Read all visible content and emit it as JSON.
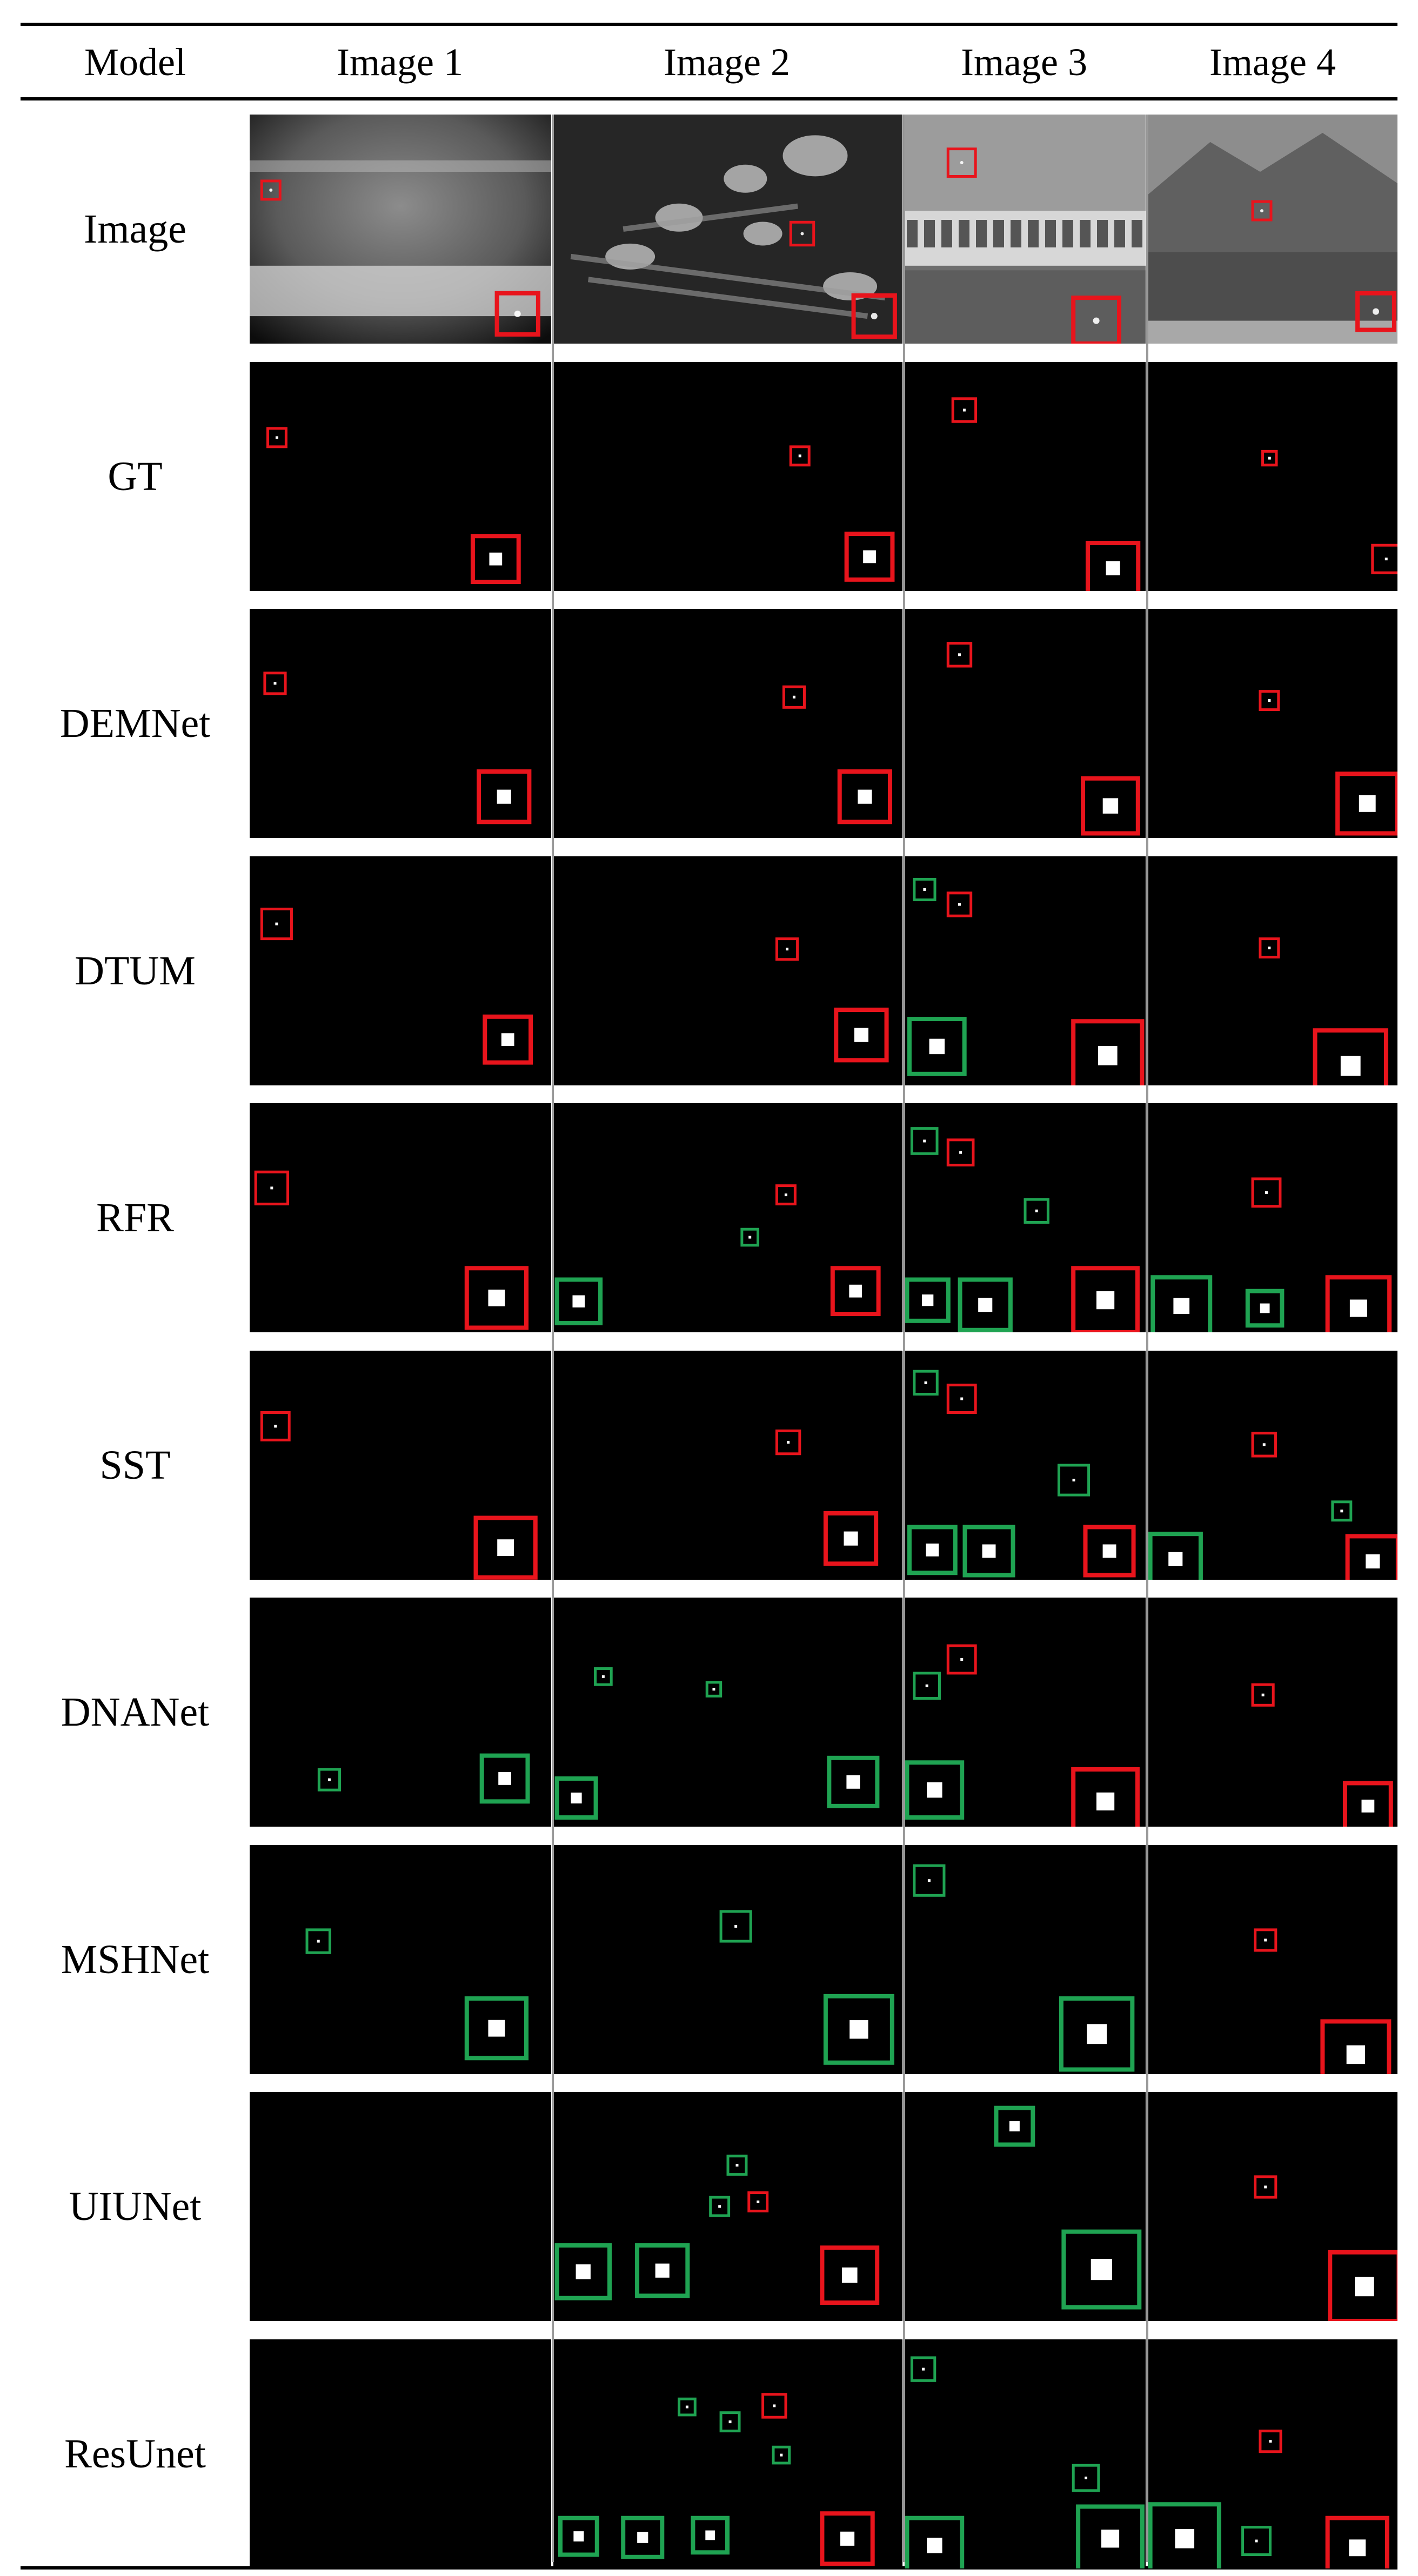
{
  "table": {
    "columns": [
      "Model",
      "Image 1",
      "Image 2",
      "Image 3",
      "Image 4"
    ],
    "rows": [
      {
        "label": "Image"
      },
      {
        "label": "GT"
      },
      {
        "label": "DEMNet"
      },
      {
        "label": "DTUM"
      },
      {
        "label": "RFR"
      },
      {
        "label": "SST"
      },
      {
        "label": "DNANet"
      },
      {
        "label": "MSHNet"
      },
      {
        "label": "UIUNet"
      },
      {
        "label": "ResUnet"
      }
    ]
  },
  "colors": {
    "background": "#000000",
    "true_detection_box": "#e8141c",
    "false_alarm_box": "#1fa352",
    "target": "#ffffff"
  },
  "icons": {
    "true_detection": "red-box",
    "false_alarm": "green-box"
  }
}
